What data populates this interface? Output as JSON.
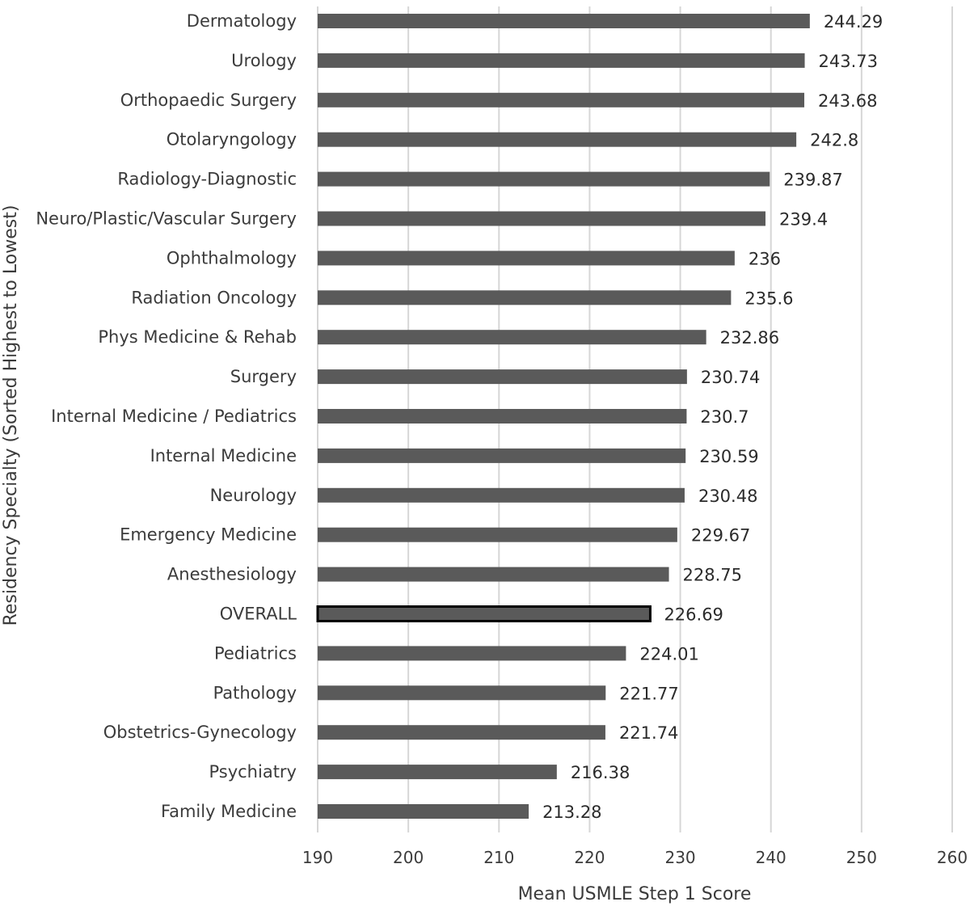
{
  "chart_data": {
    "type": "bar",
    "orientation": "horizontal",
    "title": "",
    "xlabel": "Mean USMLE Step 1 Score",
    "ylabel": "Residency Specialty (Sorted Highest to Lowest)",
    "xlim": [
      190,
      260
    ],
    "x_ticks": [
      "190",
      "200",
      "210",
      "220",
      "230",
      "240",
      "250",
      "260"
    ],
    "grid": "vertical",
    "legend": "none",
    "bar_color": "#5a5a5a",
    "highlight_outline_color": "#000000",
    "highlight_category": "OVERALL",
    "categories": [
      "Dermatology",
      "Urology",
      "Orthopaedic Surgery",
      "Otolaryngology",
      "Radiology-Diagnostic",
      "Neuro/Plastic/Vascular Surgery",
      "Ophthalmology",
      "Radiation Oncology",
      "Phys Medicine & Rehab",
      "Surgery",
      "Internal Medicine / Pediatrics",
      "Internal Medicine",
      "Neurology",
      "Emergency Medicine",
      "Anesthesiology",
      "OVERALL",
      "Pediatrics",
      "Pathology",
      "Obstetrics-Gynecology",
      "Psychiatry",
      "Family Medicine"
    ],
    "values": [
      244.29,
      243.73,
      243.68,
      242.8,
      239.87,
      239.4,
      236,
      235.6,
      232.86,
      230.74,
      230.7,
      230.59,
      230.48,
      229.67,
      228.75,
      226.69,
      224.01,
      221.77,
      221.74,
      216.38,
      213.28
    ],
    "value_labels": [
      "244.29",
      "243.73",
      "243.68",
      "242.8",
      "239.87",
      "239.4",
      "236",
      "235.6",
      "232.86",
      "230.74",
      "230.7",
      "230.59",
      "230.48",
      "229.67",
      "228.75",
      "226.69",
      "224.01",
      "221.77",
      "221.74",
      "216.38",
      "213.28"
    ]
  }
}
